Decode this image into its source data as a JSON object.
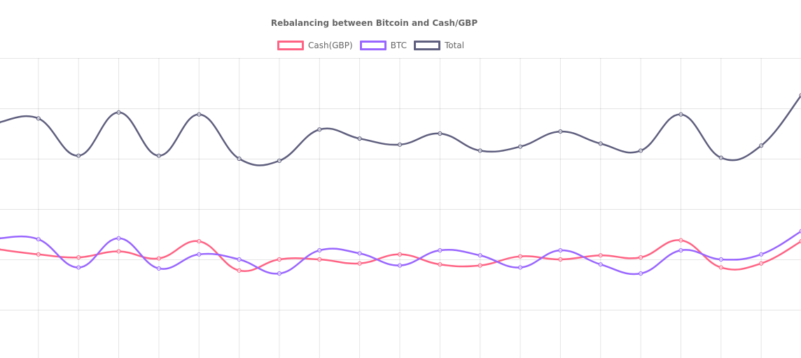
{
  "chart_data": {
    "type": "line",
    "title": "Rebalancing between Bitcoin and Cash/GBP",
    "xlabel": "",
    "ylabel": "",
    "grid": true,
    "legend_position": "top",
    "x": [
      0,
      1,
      2,
      3,
      4,
      5,
      6,
      7,
      8,
      9,
      10,
      11,
      12,
      13,
      14,
      15,
      16,
      17,
      18,
      19,
      20
    ],
    "ylim": [
      0,
      300
    ],
    "series": [
      {
        "name": "Cash(GBP)",
        "color": "#ff6384",
        "values": [
          110,
          105,
          102,
          108,
          101,
          118,
          89,
          100,
          100,
          96,
          105,
          95,
          94,
          103,
          100,
          104,
          102,
          119,
          92,
          96,
          118
        ]
      },
      {
        "name": "BTC",
        "color": "#9966ff",
        "values": [
          121,
          120,
          92,
          121,
          91,
          105,
          100,
          86,
          109,
          106,
          94,
          109,
          104,
          92,
          109,
          95,
          86,
          109,
          100,
          105,
          128
        ]
      },
      {
        "name": "Total",
        "color": "#5f5f7f",
        "values": [
          236,
          240,
          203,
          246,
          203,
          244,
          200,
          198,
          229,
          220,
          214,
          225,
          208,
          212,
          227,
          215,
          208,
          244,
          201,
          213,
          263
        ]
      }
    ]
  }
}
